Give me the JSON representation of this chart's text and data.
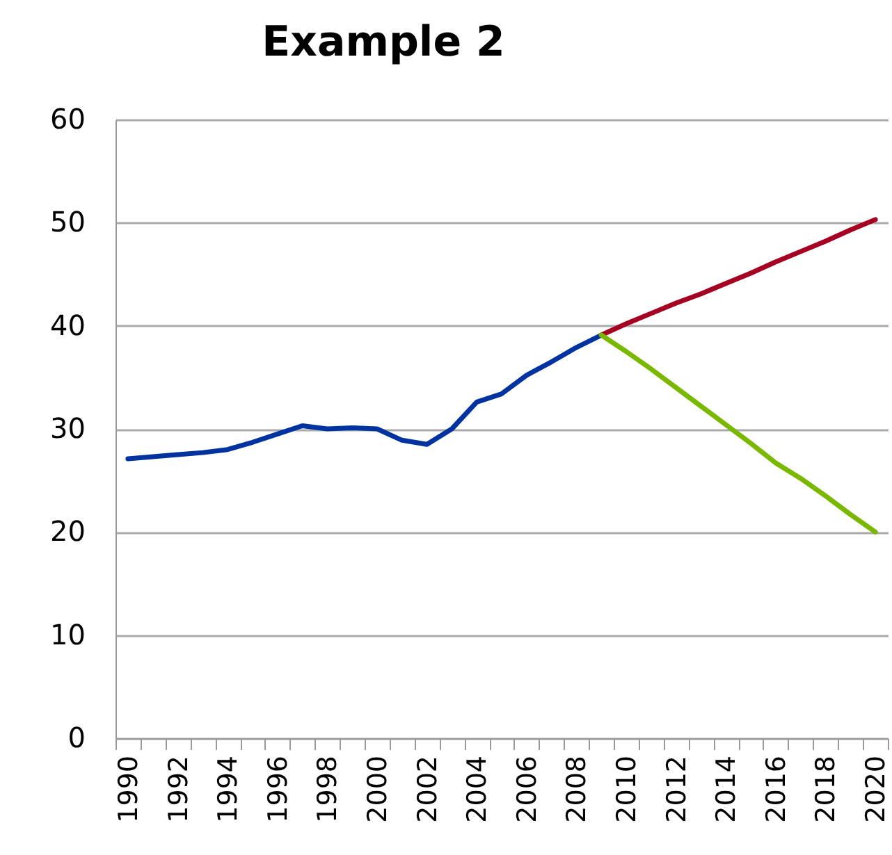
{
  "chart_data": {
    "type": "line",
    "title": "Example 2",
    "categories": [
      "1990",
      null,
      "1992",
      null,
      "1994",
      null,
      "1996",
      null,
      "1998",
      null,
      "2000",
      null,
      "2002",
      null,
      "2004",
      null,
      "2006",
      null,
      "2008",
      null,
      "2010",
      null,
      "2012",
      null,
      "2014",
      null,
      "2016",
      null,
      "2018",
      null,
      "2020"
    ],
    "series": [
      {
        "color": "#0033a0",
        "values": [
          27.1,
          27.3,
          27.5,
          27.7,
          28.0,
          28.7,
          29.5,
          30.3,
          30.0,
          30.1,
          30.0,
          28.9,
          28.5,
          30.0,
          32.6,
          33.4,
          35.2,
          36.5,
          37.9,
          39.1,
          null,
          null,
          null,
          null,
          null,
          null,
          null,
          null,
          null,
          null,
          null
        ]
      },
      {
        "color": "#a50021",
        "values": [
          null,
          null,
          null,
          null,
          null,
          null,
          null,
          null,
          null,
          null,
          null,
          null,
          null,
          null,
          null,
          null,
          null,
          null,
          null,
          39.1,
          40.2,
          41.2,
          42.2,
          43.1,
          44.1,
          45.1,
          46.2,
          47.2,
          48.2,
          49.3,
          50.3
        ]
      },
      {
        "color": "#7ab800",
        "values": [
          null,
          null,
          null,
          null,
          null,
          null,
          null,
          null,
          null,
          null,
          null,
          null,
          null,
          null,
          null,
          null,
          null,
          null,
          null,
          39.1,
          37.5,
          35.8,
          34.0,
          32.2,
          30.4,
          28.6,
          26.7,
          25.2,
          23.5,
          21.7,
          20.0
        ]
      }
    ],
    "ylim": [
      0,
      60
    ],
    "yticks": [
      0,
      10,
      20,
      30,
      40,
      50,
      60
    ],
    "grid": "y",
    "legend": false,
    "marker": "none",
    "line_style": "solid"
  }
}
